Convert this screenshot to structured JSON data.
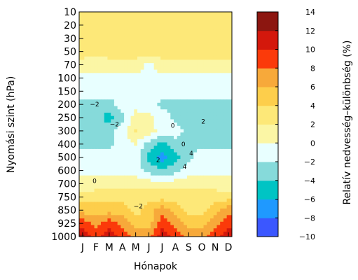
{
  "chart_data": {
    "type": "heatmap",
    "xlabel": "Hónapok",
    "ylabel": "Nyomási szint (hPa)",
    "colorbar_label": "Relatív nedvesség–különbség (%)",
    "x_ticks": [
      "J",
      "F",
      "M",
      "A",
      "M",
      "J",
      "J",
      "A",
      "S",
      "O",
      "N",
      "D"
    ],
    "y_ticks": [
      "10",
      "20",
      "30",
      "50",
      "70",
      "100",
      "150",
      "200",
      "250",
      "300",
      "400",
      "500",
      "600",
      "700",
      "750",
      "850",
      "925",
      "1000"
    ],
    "colorbar_ticks": [
      "14",
      "12",
      "10",
      "8",
      "6",
      "4",
      "2",
      "0",
      "−2",
      "−4",
      "−6",
      "−8",
      "−10"
    ],
    "levels": [
      -10,
      -8,
      -6,
      -4,
      -2,
      0,
      2,
      4,
      6,
      8,
      10,
      12,
      14
    ],
    "level_colors": [
      "#3b57ff",
      "#1f99ff",
      "#00c4c4",
      "#86dada",
      "#e8ffff",
      "#fbf6a5",
      "#fde878",
      "#fdce4b",
      "#f7a93a",
      "#fb3a0a",
      "#d4180c",
      "#8c1610"
    ],
    "grid": false,
    "values": [
      [
        3,
        3,
        3,
        3,
        3,
        3,
        3,
        3,
        3,
        3,
        3,
        3
      ],
      [
        3,
        3,
        3,
        3,
        3,
        3,
        3,
        3,
        3,
        3,
        3,
        3
      ],
      [
        3,
        3,
        3,
        3,
        3,
        3,
        3,
        3,
        3,
        3,
        3,
        3
      ],
      [
        3,
        3,
        3,
        3,
        3,
        3,
        3,
        3,
        3,
        3,
        3,
        3
      ],
      [
        1,
        0.5,
        1,
        1,
        1,
        -0.5,
        1,
        1,
        1,
        1,
        1,
        1
      ],
      [
        -0.5,
        -0.5,
        -0.5,
        -0.5,
        -0.5,
        -1,
        -0.5,
        -0.5,
        -0.5,
        -0.5,
        -0.5,
        -0.5
      ],
      [
        -1,
        -1,
        -1,
        -1,
        -1,
        -1,
        -1,
        -1,
        -1,
        -1,
        -1,
        -1
      ],
      [
        -2.5,
        -2.5,
        -3,
        -1,
        -1,
        -1,
        -2.5,
        -3,
        -3,
        -2.5,
        -3,
        -3
      ],
      [
        -3,
        -3,
        -5,
        -2.5,
        1,
        0.5,
        -1,
        -2.5,
        -3,
        -3,
        -3,
        -3
      ],
      [
        -3,
        -3,
        -3,
        -1,
        2,
        1,
        -1,
        -1,
        -3,
        -3,
        -3,
        -3
      ],
      [
        -2.5,
        -2.5,
        -2.5,
        -1,
        0,
        -3,
        -5,
        -3,
        -2.5,
        -2.5,
        -2.5,
        -2.5
      ],
      [
        -1,
        -1,
        -1,
        -1,
        -1,
        -5,
        -7,
        -5,
        -2.5,
        -1,
        -1,
        -1
      ],
      [
        -0.5,
        -0.5,
        -0.5,
        -0.5,
        -0.5,
        -3,
        -3.5,
        -3,
        -1,
        -0.5,
        -0.5,
        -0.5
      ],
      [
        0.5,
        1,
        1,
        1,
        1,
        1,
        1,
        1,
        1,
        1,
        1,
        0.5
      ],
      [
        3,
        3,
        3,
        3,
        3,
        3,
        3,
        3,
        3,
        3,
        3,
        3
      ],
      [
        5,
        5,
        5,
        5,
        3,
        5,
        7,
        5,
        3,
        3,
        5,
        7
      ],
      [
        9,
        7,
        9,
        7,
        5,
        5,
        9,
        7,
        5,
        5,
        7,
        9
      ],
      [
        12,
        9,
        11,
        9,
        7,
        7,
        11,
        9,
        7,
        7,
        9,
        11
      ]
    ],
    "contour_labels": [
      "0",
      "2",
      "−2",
      "0",
      "2",
      "4",
      "4",
      "−2",
      "0",
      "−2"
    ]
  }
}
